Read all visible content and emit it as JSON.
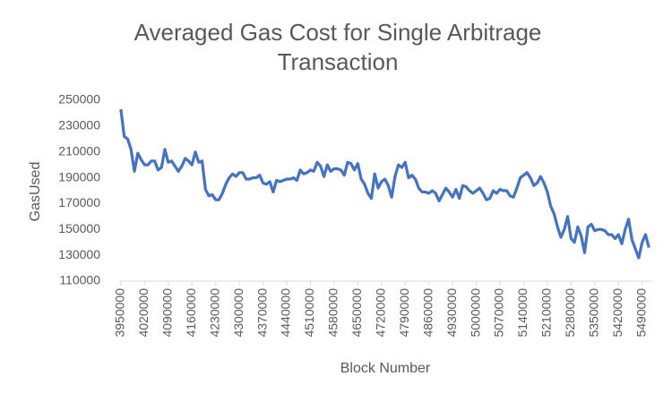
{
  "chart_data": {
    "type": "line",
    "title": "Averaged Gas Cost for Single Arbitrage Transaction",
    "x_label": "Block Number",
    "y_label": "GasUsed",
    "x": [
      3950000,
      3960000,
      3970000,
      3980000,
      3990000,
      4000000,
      4010000,
      4020000,
      4030000,
      4040000,
      4050000,
      4060000,
      4070000,
      4080000,
      4090000,
      4100000,
      4110000,
      4120000,
      4130000,
      4140000,
      4150000,
      4160000,
      4170000,
      4180000,
      4190000,
      4200000,
      4210000,
      4220000,
      4230000,
      4240000,
      4250000,
      4260000,
      4270000,
      4280000,
      4290000,
      4300000,
      4310000,
      4320000,
      4330000,
      4340000,
      4350000,
      4360000,
      4370000,
      4380000,
      4390000,
      4400000,
      4410000,
      4420000,
      4430000,
      4440000,
      4450000,
      4460000,
      4470000,
      4480000,
      4490000,
      4500000,
      4510000,
      4520000,
      4530000,
      4540000,
      4550000,
      4560000,
      4570000,
      4580000,
      4590000,
      4600000,
      4610000,
      4620000,
      4630000,
      4640000,
      4650000,
      4660000,
      4670000,
      4680000,
      4690000,
      4700000,
      4710000,
      4720000,
      4730000,
      4740000,
      4750000,
      4760000,
      4770000,
      4780000,
      4790000,
      4800000,
      4810000,
      4820000,
      4830000,
      4840000,
      4850000,
      4860000,
      4870000,
      4880000,
      4890000,
      4900000,
      4910000,
      4920000,
      4930000,
      4940000,
      4950000,
      4960000,
      4970000,
      4980000,
      4990000,
      5000000,
      5010000,
      5020000,
      5030000,
      5040000,
      5050000,
      5060000,
      5070000,
      5080000,
      5090000,
      5100000,
      5110000,
      5120000,
      5130000,
      5140000,
      5150000,
      5160000,
      5170000,
      5180000,
      5190000,
      5200000,
      5210000,
      5220000,
      5230000,
      5240000,
      5250000,
      5260000,
      5270000,
      5280000,
      5290000,
      5300000,
      5310000,
      5320000,
      5330000,
      5340000,
      5350000,
      5360000,
      5370000,
      5380000,
      5390000,
      5400000,
      5410000,
      5420000,
      5430000,
      5440000,
      5450000,
      5460000,
      5470000,
      5480000,
      5490000,
      5500000,
      5510000
    ],
    "series": [
      {
        "name": "GasUsed",
        "color": "#4472c4",
        "values": [
          243000,
          222000,
          220000,
          212000,
          195000,
          209000,
          204000,
          200000,
          200000,
          203000,
          203000,
          196000,
          198000,
          212000,
          202000,
          203000,
          199000,
          195000,
          199000,
          205000,
          203000,
          200000,
          210000,
          202000,
          203000,
          181000,
          176000,
          177000,
          173000,
          173000,
          178000,
          185000,
          190000,
          193000,
          191000,
          194000,
          194000,
          189000,
          189000,
          190000,
          190000,
          192000,
          186000,
          185000,
          187000,
          179000,
          188000,
          187000,
          188000,
          189000,
          189000,
          190000,
          188000,
          196000,
          193000,
          194000,
          196000,
          195000,
          202000,
          199000,
          191000,
          200000,
          195000,
          197000,
          197000,
          196000,
          192000,
          202000,
          201000,
          196000,
          201000,
          189000,
          185000,
          178000,
          174000,
          193000,
          182000,
          187000,
          189000,
          184000,
          175000,
          191000,
          200000,
          198000,
          202000,
          190000,
          192000,
          189000,
          182000,
          179000,
          179000,
          178000,
          180000,
          178000,
          172000,
          177000,
          182000,
          179000,
          175000,
          181000,
          174000,
          184000,
          183000,
          180000,
          178000,
          180000,
          182000,
          178000,
          173000,
          174000,
          180000,
          178000,
          181000,
          180000,
          180000,
          176000,
          175000,
          182000,
          190000,
          192000,
          194000,
          190000,
          184000,
          186000,
          191000,
          186000,
          179000,
          168000,
          162000,
          152000,
          144000,
          150000,
          160000,
          143000,
          140000,
          152000,
          145000,
          132000,
          152000,
          154000,
          149000,
          150000,
          150000,
          149000,
          146000,
          146000,
          143000,
          146000,
          139000,
          150000,
          158000,
          142000,
          135000,
          128000,
          140000,
          146000,
          136000
        ]
      }
    ],
    "xlim": [
      3945000,
      5520000
    ],
    "xticks": [
      3950000,
      4020000,
      4090000,
      4160000,
      4230000,
      4300000,
      4370000,
      4440000,
      4510000,
      4580000,
      4650000,
      4720000,
      4790000,
      4860000,
      4930000,
      5000000,
      5070000,
      5140000,
      5210000,
      5280000,
      5350000,
      5420000,
      5490000
    ],
    "ylim": [
      110000,
      250000
    ],
    "yticks": [
      110000,
      130000,
      150000,
      170000,
      190000,
      210000,
      230000,
      250000
    ],
    "grid": false
  }
}
